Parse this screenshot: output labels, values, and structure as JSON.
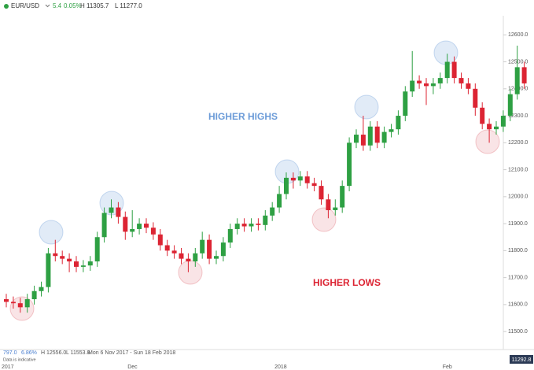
{
  "header": {
    "symbol": "EUR/USD",
    "change": "5.4",
    "change_pct": "0.05%",
    "high": "H 11305.7",
    "low": "L 11277.0"
  },
  "footer": {
    "change": "797.0",
    "change_pct": "6.86%",
    "high": "H 12556.0",
    "low": "L 11553.8",
    "range": "Mon 6 Nov 2017 - Sun 18 Feb 2018",
    "note": "Data is indicative",
    "price_badge": "11292.8"
  },
  "chart_data": {
    "type": "candlestick",
    "annotations": [
      "HIGHER HIGHS",
      "HIGHER LOWS"
    ],
    "categories": [
      "2017",
      null,
      null,
      null,
      null,
      null,
      null,
      null,
      null,
      null,
      null,
      null,
      null,
      null,
      null,
      null,
      null,
      null,
      "Dec",
      null,
      null,
      null,
      null,
      null,
      null,
      null,
      null,
      null,
      null,
      null,
      null,
      null,
      null,
      null,
      null,
      null,
      null,
      null,
      null,
      "2018",
      null,
      null,
      null,
      null,
      null,
      null,
      null,
      null,
      null,
      null,
      null,
      null,
      null,
      null,
      null,
      null,
      null,
      null,
      null,
      null,
      null,
      null,
      null,
      "Feb",
      null,
      null,
      null,
      null,
      null,
      null,
      null,
      null,
      null,
      null,
      null
    ],
    "open": [
      11620,
      11610,
      11605,
      11590,
      11620,
      11650,
      11665,
      11790,
      11780,
      11770,
      11760,
      11740,
      11745,
      11760,
      11850,
      11940,
      11960,
      11925,
      11870,
      11880,
      11900,
      11885,
      11860,
      11820,
      11800,
      11790,
      11770,
      11760,
      11790,
      11840,
      11770,
      11780,
      11830,
      11880,
      11900,
      11890,
      11900,
      11895,
      11930,
      11960,
      12010,
      12070,
      12060,
      12075,
      12050,
      12040,
      11990,
      11950,
      11960,
      12040,
      12200,
      12230,
      12190,
      12260,
      12200,
      12240,
      12250,
      12300,
      12390,
      12430,
      12420,
      12410,
      12420,
      12440,
      12500,
      12440,
      12420,
      12400,
      12330,
      12270,
      12250,
      12260,
      12300,
      12380,
      12480
    ],
    "high": [
      11640,
      11630,
      11625,
      11640,
      11670,
      11685,
      11810,
      11840,
      11800,
      11790,
      11780,
      11765,
      11780,
      11870,
      11960,
      11990,
      11980,
      11945,
      11950,
      11920,
      11920,
      11905,
      11880,
      11840,
      11820,
      11810,
      11790,
      11810,
      11870,
      11860,
      11800,
      11850,
      11900,
      11920,
      11920,
      11920,
      11920,
      11950,
      11980,
      12040,
      12090,
      12090,
      12095,
      12095,
      12070,
      12060,
      12010,
      11990,
      12060,
      12220,
      12250,
      12300,
      12280,
      12280,
      12260,
      12270,
      12320,
      12410,
      12540,
      12450,
      12440,
      12440,
      12460,
      12530,
      12520,
      12460,
      12440,
      12420,
      12350,
      12290,
      12280,
      12320,
      12400,
      12560,
      12500
    ],
    "low": [
      11590,
      11585,
      11570,
      11570,
      11600,
      11630,
      11645,
      11760,
      11750,
      11720,
      11720,
      11720,
      11725,
      11740,
      11830,
      11920,
      11900,
      11840,
      11850,
      11860,
      11865,
      11840,
      11800,
      11780,
      11770,
      11750,
      11720,
      11740,
      11770,
      11750,
      11750,
      11760,
      11810,
      11860,
      11870,
      11870,
      11875,
      11875,
      11910,
      11940,
      11990,
      12030,
      12040,
      12030,
      12020,
      11970,
      11920,
      11930,
      11940,
      12020,
      12180,
      12170,
      12170,
      12180,
      12180,
      12220,
      12230,
      12280,
      12370,
      12400,
      12340,
      12380,
      12400,
      12420,
      12420,
      12400,
      12380,
      12300,
      12250,
      12200,
      12230,
      12240,
      12280,
      12360,
      12400
    ],
    "close": [
      11610,
      11605,
      11590,
      11620,
      11650,
      11665,
      11790,
      11780,
      11770,
      11760,
      11740,
      11745,
      11760,
      11850,
      11940,
      11960,
      11925,
      11870,
      11880,
      11900,
      11885,
      11860,
      11820,
      11800,
      11790,
      11770,
      11760,
      11790,
      11840,
      11770,
      11780,
      11830,
      11880,
      11900,
      11890,
      11900,
      11895,
      11930,
      11960,
      12010,
      12070,
      12060,
      12075,
      12050,
      12040,
      11990,
      11950,
      11960,
      12040,
      12200,
      12230,
      12190,
      12260,
      12200,
      12240,
      12250,
      12300,
      12390,
      12430,
      12420,
      12410,
      12420,
      12440,
      12500,
      12440,
      12420,
      12400,
      12330,
      12270,
      12250,
      12260,
      12300,
      12380,
      12480,
      12420
    ],
    "up_color": "#2ea043",
    "down_color": "#dc2433",
    "ylim": [
      11445,
      12665
    ],
    "yticks": [
      {
        "value": 11500,
        "label": "11500.0"
      },
      {
        "value": 11600,
        "label": "11600.0"
      },
      {
        "value": 11700,
        "label": "11700.0"
      },
      {
        "value": 11800,
        "label": "11800.0"
      },
      {
        "value": 11900,
        "label": "11900.0"
      },
      {
        "value": 12000,
        "label": "12000.0"
      },
      {
        "value": 12100,
        "label": "12100.0"
      },
      {
        "value": 12200,
        "label": "12200.0"
      },
      {
        "value": 12300,
        "label": "12300.0"
      },
      {
        "value": 12400,
        "label": "12400.0"
      },
      {
        "value": 12500,
        "label": "12500.0"
      },
      {
        "value": 12600,
        "label": "12600.0"
      }
    ]
  }
}
